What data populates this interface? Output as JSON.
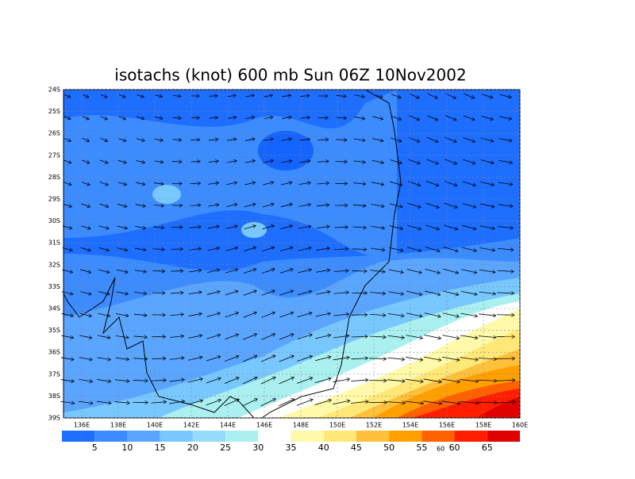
{
  "header": {
    "title": "isotachs (knot) 600 mb Sun 06Z 10Nov2002"
  },
  "map": {
    "lon_labels": [
      "136E",
      "138E",
      "140E",
      "142E",
      "144E",
      "146E",
      "148E",
      "150E",
      "152E",
      "154E",
      "156E",
      "158E",
      "160E"
    ],
    "lat_labels": [
      "24S",
      "25S",
      "26S",
      "27S",
      "28S",
      "29S",
      "30S",
      "31S",
      "32S",
      "33S",
      "34S",
      "35S",
      "36S",
      "37S",
      "38S",
      "39S"
    ],
    "contour_label": "60"
  },
  "colorbar": {
    "labels": [
      "5",
      "10",
      "15",
      "20",
      "25",
      "30",
      "35",
      "40",
      "45",
      "50",
      "55",
      "60",
      "65"
    ]
  }
}
